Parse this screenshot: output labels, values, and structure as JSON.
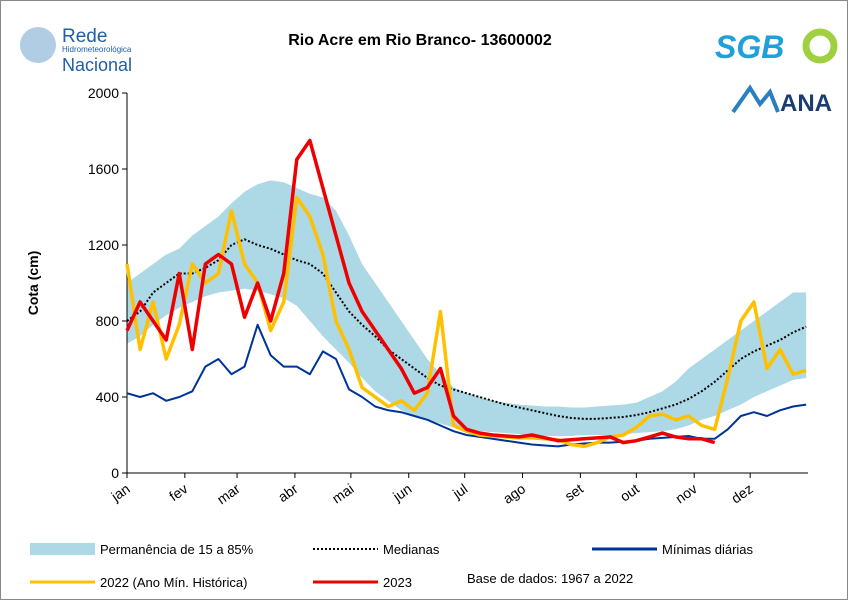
{
  "logos": {
    "rede": "Rede",
    "rede_sub": "Hidrometeorológica",
    "rede_bottom": "Nacional",
    "sgb": "SGB",
    "ana": "ANA"
  },
  "chart_data": {
    "type": "line",
    "title": "Rio Acre em Rio Branco- 13600002",
    "y_label": "Cota (cm)",
    "note": "Base de dados: 1967 a 2022",
    "x": [
      1,
      8,
      15,
      22,
      29,
      36,
      43,
      50,
      57,
      64,
      71,
      78,
      85,
      92,
      99,
      106,
      113,
      120,
      127,
      134,
      141,
      148,
      155,
      162,
      169,
      176,
      183,
      190,
      197,
      204,
      211,
      218,
      225,
      232,
      239,
      246,
      253,
      260,
      267,
      274,
      281,
      288,
      295,
      302,
      309,
      316,
      323,
      330,
      337,
      344,
      351,
      358,
      365
    ],
    "xlim": [
      1,
      366
    ],
    "xticks": [
      {
        "value": 1,
        "label": "jan"
      },
      {
        "value": 32,
        "label": "fev"
      },
      {
        "value": 60,
        "label": "mar"
      },
      {
        "value": 91,
        "label": "abr"
      },
      {
        "value": 121,
        "label": "mai"
      },
      {
        "value": 152,
        "label": "jun"
      },
      {
        "value": 182,
        "label": "jul"
      },
      {
        "value": 213,
        "label": "ago"
      },
      {
        "value": 244,
        "label": "set"
      },
      {
        "value": 274,
        "label": "out"
      },
      {
        "value": 305,
        "label": "nov"
      },
      {
        "value": 335,
        "label": "dez"
      }
    ],
    "ylim": [
      0,
      2000
    ],
    "yticks": [
      0,
      400,
      800,
      1200,
      1600,
      2000
    ],
    "band": {
      "name": "Permanência de 15 a 85%",
      "color": "#add8e6",
      "low": [
        680,
        720,
        780,
        830,
        870,
        900,
        930,
        950,
        960,
        970,
        960,
        940,
        920,
        880,
        800,
        720,
        650,
        580,
        500,
        430,
        380,
        330,
        300,
        280,
        260,
        240,
        230,
        220,
        215,
        210,
        205,
        200,
        195,
        195,
        195,
        200,
        200,
        200,
        205,
        210,
        215,
        220,
        230,
        250,
        280,
        300,
        330,
        360,
        400,
        430,
        460,
        490,
        500
      ],
      "high": [
        1000,
        1050,
        1100,
        1150,
        1180,
        1250,
        1300,
        1350,
        1420,
        1480,
        1520,
        1540,
        1530,
        1500,
        1470,
        1450,
        1380,
        1250,
        1100,
        1000,
        900,
        800,
        700,
        600,
        520,
        450,
        420,
        400,
        380,
        370,
        360,
        355,
        350,
        350,
        345,
        345,
        350,
        355,
        360,
        370,
        400,
        430,
        480,
        550,
        600,
        650,
        700,
        750,
        800,
        850,
        900,
        950,
        950
      ]
    },
    "series": [
      {
        "name": "Medianas",
        "color": "#000000",
        "dash": true,
        "values": [
          800,
          850,
          950,
          1000,
          1050,
          1050,
          1080,
          1120,
          1200,
          1230,
          1200,
          1180,
          1150,
          1120,
          1100,
          1050,
          950,
          850,
          780,
          720,
          650,
          600,
          550,
          500,
          460,
          440,
          420,
          400,
          380,
          360,
          345,
          330,
          315,
          300,
          290,
          285,
          285,
          290,
          295,
          305,
          320,
          340,
          360,
          390,
          430,
          480,
          540,
          600,
          640,
          670,
          700,
          740,
          770
        ]
      },
      {
        "name": "Mínimas diárias",
        "color": "#003399",
        "values": [
          420,
          400,
          420,
          380,
          400,
          430,
          560,
          600,
          520,
          560,
          780,
          620,
          560,
          560,
          520,
          640,
          600,
          440,
          400,
          350,
          330,
          320,
          300,
          280,
          250,
          220,
          200,
          190,
          180,
          170,
          160,
          150,
          145,
          140,
          150,
          155,
          160,
          160,
          165,
          170,
          180,
          185,
          190,
          195,
          180,
          180,
          230,
          300,
          320,
          300,
          330,
          350,
          360
        ]
      },
      {
        "name": "2022 (Ano Mín. Histórica)",
        "color": "#ffc000",
        "values": [
          1100,
          650,
          900,
          600,
          780,
          1100,
          1000,
          1050,
          1380,
          1100,
          1000,
          750,
          900,
          1450,
          1350,
          1150,
          800,
          650,
          450,
          400,
          350,
          380,
          330,
          420,
          850,
          250,
          220,
          200,
          195,
          190,
          185,
          185,
          180,
          175,
          150,
          140,
          160,
          190,
          200,
          240,
          300,
          310,
          280,
          300,
          250,
          230,
          500,
          800,
          900,
          550,
          650,
          520,
          540
        ]
      },
      {
        "name": "2023",
        "color": "#ee0000",
        "values": [
          750,
          900,
          800,
          700,
          1050,
          650,
          1100,
          1150,
          1100,
          820,
          1000,
          800,
          1050,
          1650,
          1750,
          1500,
          1250,
          1000,
          850,
          750,
          650,
          550,
          420,
          450,
          550,
          300,
          230,
          210,
          200,
          195,
          190,
          200,
          185,
          170,
          175,
          180,
          185,
          190,
          160,
          170,
          190,
          210,
          190,
          180,
          180,
          160,
          null,
          null,
          null,
          null,
          null,
          null,
          null
        ]
      }
    ]
  }
}
